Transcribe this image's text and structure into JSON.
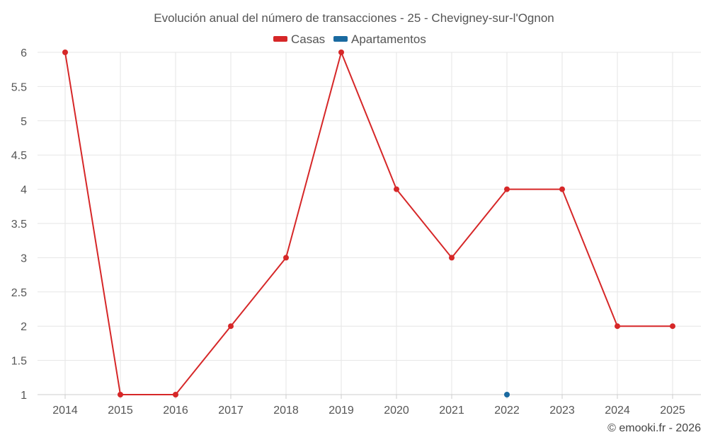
{
  "chart_data": {
    "type": "line",
    "title": "Evolución anual del número de transacciones - 25 - Chevigney-sur-l'Ognon",
    "categories": [
      "2014",
      "2015",
      "2016",
      "2017",
      "2018",
      "2019",
      "2020",
      "2021",
      "2022",
      "2023",
      "2024",
      "2025"
    ],
    "series": [
      {
        "name": "Casas",
        "color": "#d62728",
        "values": [
          6,
          1,
          1,
          2,
          3,
          6,
          4,
          3,
          4,
          4,
          2,
          2
        ]
      },
      {
        "name": "Apartamentos",
        "color": "#1a6aa0",
        "values": [
          null,
          null,
          null,
          null,
          null,
          null,
          null,
          null,
          1,
          null,
          null,
          null
        ]
      }
    ],
    "ylim": [
      1,
      6
    ],
    "yticks": [
      "1",
      "1.5",
      "2",
      "2.5",
      "3",
      "3.5",
      "4",
      "4.5",
      "5",
      "5.5",
      "6"
    ],
    "grid": true,
    "legend": "top-center"
  },
  "credit": "© emooki.fr - 2026"
}
